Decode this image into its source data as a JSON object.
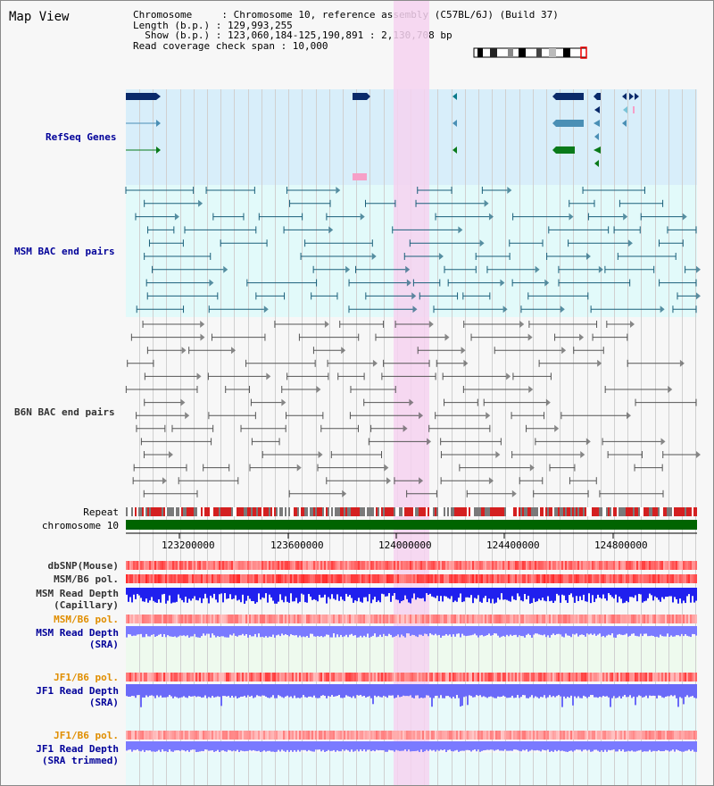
{
  "title": "Map View",
  "info": {
    "chromosome_line": "Chromosome     : Chromosome 10, reference assembly (C57BL/6J) (Build 37)",
    "length_line": "Length (b.p.) : 129,993,255",
    "show_line": "  Show (b.p.) : 123,060,184-125,190,891 : 2,130,708 bp",
    "coverage_line": "Read coverage check span : 10,000"
  },
  "tracks": {
    "refseq": "RefSeq Genes",
    "msm_bac": "MSM BAC end pairs",
    "b6n_bac": "B6N BAC end pairs",
    "repeat": "Repeat",
    "chromosome": "chromosome 10",
    "dbsnp": "dbSNP(Mouse)",
    "msm_b6_pol": "MSM/B6 pol.",
    "msm_read_depth_cap_1": "MSM Read Depth",
    "msm_read_depth_cap_2": "(Capillary)",
    "msm_b6_pol_2": "MSM/B6 pol.",
    "msm_read_depth_sra_1": "MSM Read Depth",
    "msm_read_depth_sra_2": "(SRA)",
    "jf1_b6_pol": "JF1/B6 pol.",
    "jf1_read_depth_sra_1": "JF1 Read Depth",
    "jf1_read_depth_sra_2": "(SRA)",
    "jf1_b6_pol_2": "JF1/B6 pol.",
    "jf1_read_depth_trim_1": "JF1 Read Depth",
    "jf1_read_depth_trim_2": "(SRA trimmed)"
  },
  "axis": {
    "ticks": [
      "123200000",
      "123600000",
      "124000000",
      "124400000",
      "124800000"
    ]
  },
  "colors": {
    "label_blue": "#000099",
    "label_orange": "#e08e00",
    "highlight": "#f6d2f0",
    "refseq_bg": "#d8eefa",
    "msm_bg": "#e2fafa",
    "gene_navy": "#0a2a6a",
    "gene_teal": "#4a8fb5",
    "gene_green": "#0a7a1a",
    "bac_msm": "#1a5f7a",
    "bac_b6n": "#555555",
    "chrom_green": "#006400",
    "depth_blue": "#2020ee",
    "depth_sra": "#7a7aff"
  }
}
